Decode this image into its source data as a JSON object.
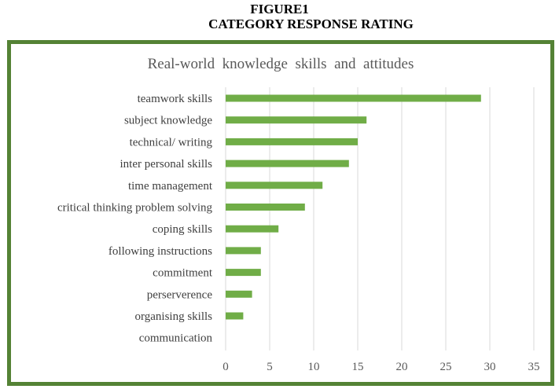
{
  "figure": {
    "title_line1": "FIGURE1",
    "title_line2": "CATEGORY RESPONSE RATING"
  },
  "chart_data": {
    "type": "bar",
    "orientation": "horizontal",
    "title": "Real-world  knowledge  skills  and  attitudes",
    "categories": [
      "teamwork skills",
      "subject knowledge",
      "technical/ writing",
      "inter personal skills",
      "time management",
      "critical thinking problem solving",
      "coping skills",
      "following instructions",
      "commitment",
      "perserverence",
      "organising skills",
      "communication"
    ],
    "values": [
      29,
      16,
      15,
      14,
      11,
      9,
      6,
      4,
      4,
      3,
      2,
      0
    ],
    "xlim": [
      0,
      35
    ],
    "xticks": [
      0,
      5,
      10,
      15,
      20,
      25,
      30,
      35
    ],
    "grid": true,
    "legend": "none",
    "bar_color": "#70ad47",
    "frame_color": "#548235"
  }
}
